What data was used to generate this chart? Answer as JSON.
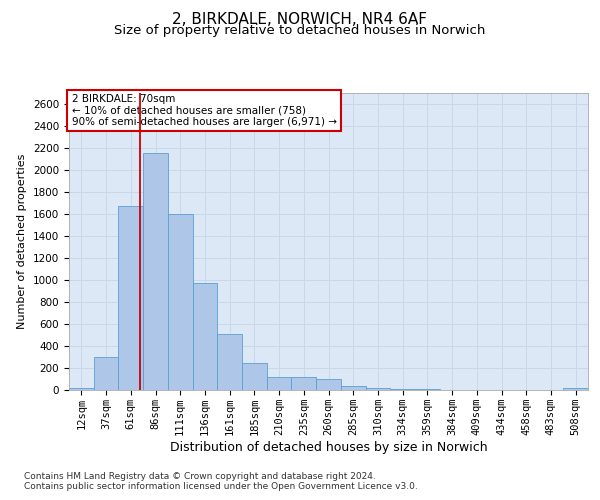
{
  "title1": "2, BIRKDALE, NORWICH, NR4 6AF",
  "title2": "Size of property relative to detached houses in Norwich",
  "xlabel": "Distribution of detached houses by size in Norwich",
  "ylabel": "Number of detached properties",
  "categories": [
    "12sqm",
    "37sqm",
    "61sqm",
    "86sqm",
    "111sqm",
    "136sqm",
    "161sqm",
    "185sqm",
    "210sqm",
    "235sqm",
    "260sqm",
    "285sqm",
    "310sqm",
    "334sqm",
    "359sqm",
    "384sqm",
    "409sqm",
    "434sqm",
    "458sqm",
    "483sqm",
    "508sqm"
  ],
  "values": [
    15,
    300,
    1670,
    2150,
    1600,
    970,
    510,
    245,
    120,
    115,
    100,
    40,
    18,
    10,
    5,
    2,
    2,
    2,
    0,
    0,
    15
  ],
  "bar_color": "#aec6e8",
  "bar_edge_color": "#5a9fd4",
  "bar_width": 1.0,
  "vline_color": "#cc0000",
  "annotation_text": "2 BIRKDALE: 70sqm\n← 10% of detached houses are smaller (758)\n90% of semi-detached houses are larger (6,971) →",
  "annotation_box_color": "#cc0000",
  "annotation_facecolor": "white",
  "ylim": [
    0,
    2700
  ],
  "yticks": [
    0,
    200,
    400,
    600,
    800,
    1000,
    1200,
    1400,
    1600,
    1800,
    2000,
    2200,
    2400,
    2600
  ],
  "grid_color": "#c8d8e8",
  "background_color": "#dce8f5",
  "footer1": "Contains HM Land Registry data © Crown copyright and database right 2024.",
  "footer2": "Contains public sector information licensed under the Open Government Licence v3.0.",
  "title1_fontsize": 11,
  "title2_fontsize": 9.5,
  "xlabel_fontsize": 9,
  "ylabel_fontsize": 8,
  "tick_fontsize": 7.5,
  "footer_fontsize": 6.5
}
